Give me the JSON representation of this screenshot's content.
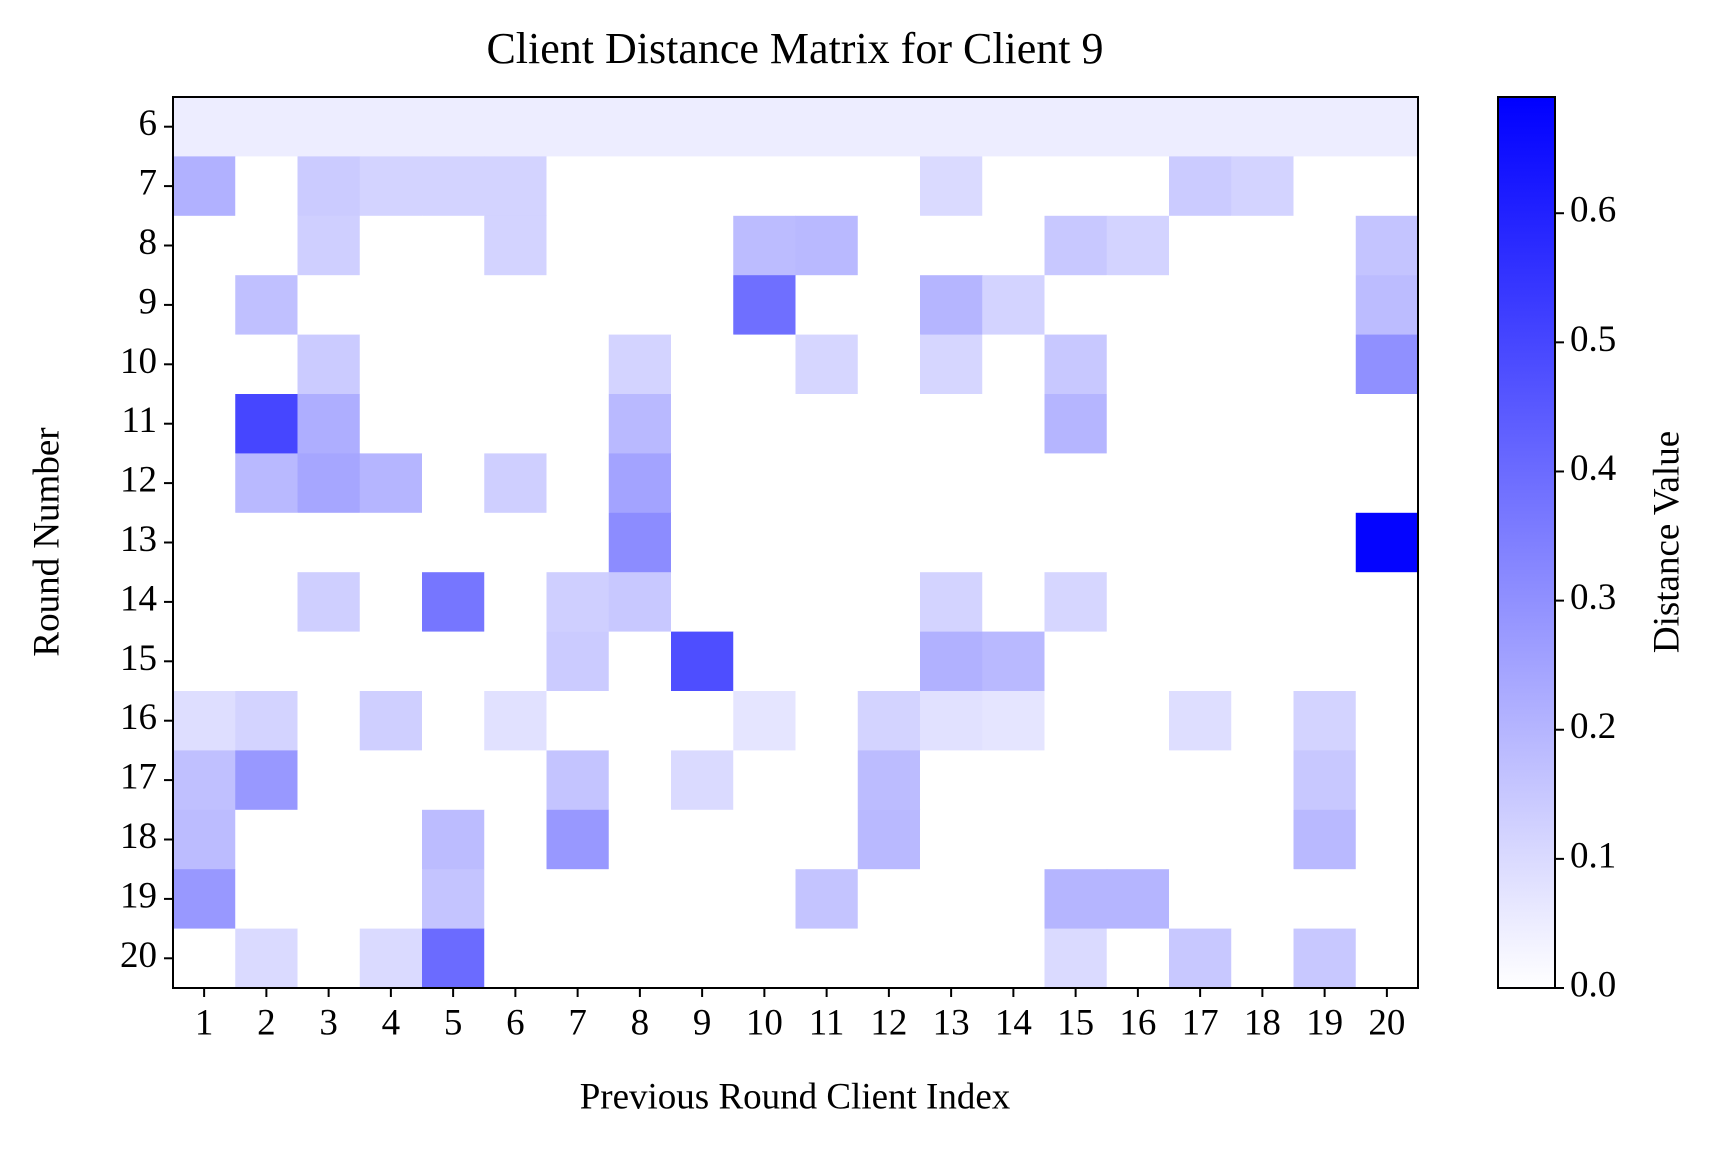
{
  "chart_data": {
    "type": "heatmap",
    "title": "Client Distance Matrix for Client 9",
    "xlabel": "Previous Round Client Index",
    "ylabel": "Round Number",
    "colorbar_label": "Distance Value",
    "x": [
      1,
      2,
      3,
      4,
      5,
      6,
      7,
      8,
      9,
      10,
      11,
      12,
      13,
      14,
      15,
      16,
      17,
      18,
      19,
      20
    ],
    "y": [
      6,
      7,
      8,
      9,
      10,
      11,
      12,
      13,
      14,
      15,
      16,
      17,
      18,
      19,
      20
    ],
    "z": [
      [
        0.05,
        0.05,
        0.05,
        0.05,
        0.05,
        0.05,
        0.05,
        0.05,
        0.05,
        0.05,
        0.05,
        0.05,
        0.05,
        0.05,
        0.05,
        0.05,
        0.05,
        0.05,
        0.05,
        0.05
      ],
      [
        0.21,
        0,
        0.14,
        0.12,
        0.12,
        0.12,
        0,
        0,
        0,
        0,
        0,
        0,
        0.1,
        0,
        0,
        0,
        0.14,
        0.12,
        0,
        0
      ],
      [
        0,
        0,
        0.13,
        0,
        0,
        0.12,
        0,
        0,
        0,
        0.18,
        0.19,
        0,
        0,
        0,
        0.15,
        0.12,
        0,
        0,
        0,
        0.16
      ],
      [
        0,
        0.17,
        0,
        0,
        0,
        0,
        0,
        0,
        0,
        0.39,
        0,
        0,
        0.2,
        0.12,
        0,
        0,
        0,
        0,
        0,
        0.18
      ],
      [
        0,
        0,
        0.14,
        0,
        0,
        0,
        0,
        0.12,
        0,
        0,
        0.11,
        0,
        0.11,
        0,
        0.15,
        0,
        0,
        0,
        0,
        0.3
      ],
      [
        0,
        0.5,
        0.22,
        0,
        0,
        0,
        0,
        0.19,
        0,
        0,
        0,
        0,
        0,
        0,
        0.2,
        0,
        0,
        0,
        0,
        0
      ],
      [
        0,
        0.19,
        0.24,
        0.2,
        0,
        0.13,
        0,
        0.25,
        0,
        0,
        0,
        0,
        0,
        0,
        0,
        0,
        0,
        0,
        0,
        0
      ],
      [
        0,
        0,
        0,
        0,
        0,
        0,
        0,
        0.31,
        0,
        0,
        0,
        0,
        0,
        0,
        0,
        0,
        0,
        0,
        0,
        0.68
      ],
      [
        0,
        0,
        0.13,
        0,
        0.37,
        0,
        0.13,
        0.15,
        0,
        0,
        0,
        0,
        0.12,
        0,
        0.11,
        0,
        0,
        0,
        0,
        0
      ],
      [
        0,
        0,
        0,
        0,
        0,
        0,
        0.14,
        0,
        0.48,
        0,
        0,
        0,
        0.21,
        0.19,
        0,
        0,
        0,
        0,
        0,
        0
      ],
      [
        0.09,
        0.12,
        0,
        0.13,
        0,
        0.08,
        0,
        0,
        0,
        0.07,
        0,
        0.12,
        0.08,
        0.07,
        0,
        0,
        0.09,
        0,
        0.12,
        0
      ],
      [
        0.17,
        0.28,
        0,
        0,
        0,
        0,
        0.16,
        0,
        0.1,
        0,
        0,
        0.18,
        0,
        0,
        0,
        0,
        0,
        0,
        0.15,
        0
      ],
      [
        0.18,
        0,
        0,
        0,
        0.18,
        0,
        0.28,
        0,
        0,
        0,
        0,
        0.19,
        0,
        0,
        0,
        0,
        0,
        0,
        0.19,
        0
      ],
      [
        0.28,
        0,
        0,
        0,
        0.16,
        0,
        0,
        0,
        0,
        0,
        0.16,
        0,
        0,
        0,
        0.2,
        0.2,
        0,
        0,
        0,
        0
      ],
      [
        0,
        0.1,
        0,
        0.1,
        0.4,
        0,
        0,
        0,
        0,
        0,
        0,
        0,
        0,
        0,
        0.1,
        0,
        0.15,
        0,
        0.15,
        0
      ]
    ],
    "cmap": [
      "#ffffff",
      "#0000ff"
    ],
    "clim": [
      0,
      0.69
    ],
    "cticks": [
      {
        "value": 0,
        "label": "0.0"
      },
      0.1,
      0.2,
      0.3,
      0.4,
      0.5,
      0.6
    ]
  }
}
